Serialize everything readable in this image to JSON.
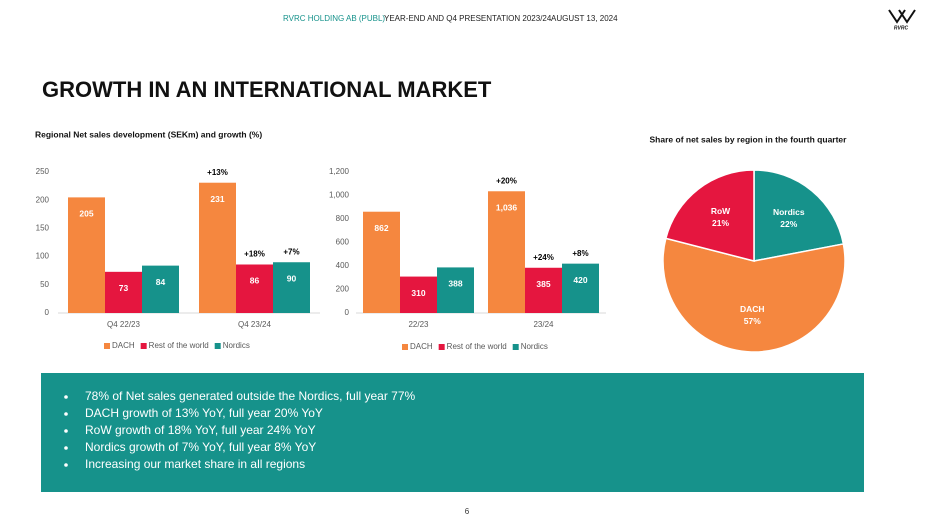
{
  "header": {
    "company": "RVRC HOLDING AB (PUBL)",
    "presentation": "YEAR-END AND Q4 PRESENTATION 2023/24",
    "date": "AUGUST 13, 2024",
    "logo": "RVRC"
  },
  "title": "GROWTH IN AN INTERNATIONAL MARKET",
  "chart_data": [
    {
      "type": "bar",
      "title": "Regional Net sales development (SEKm) and growth (%)",
      "categories": [
        "Q4 22/23",
        "Q4 23/24"
      ],
      "series": [
        {
          "name": "DACH",
          "color": "#f5873f",
          "values": [
            205,
            231
          ],
          "growth": [
            null,
            13
          ],
          "growth_labels": [
            null,
            "+13%"
          ]
        },
        {
          "name": "Rest of the world",
          "color": "#e5163f",
          "values": [
            73,
            86
          ],
          "growth": [
            null,
            18
          ],
          "growth_labels": [
            null,
            "+18%"
          ]
        },
        {
          "name": "Nordics",
          "color": "#16928b",
          "values": [
            84,
            90
          ],
          "growth": [
            null,
            7
          ],
          "growth_labels": [
            null,
            "+7%"
          ]
        }
      ],
      "ylim": [
        0,
        250
      ],
      "yticks": [
        0,
        50,
        100,
        150,
        200,
        250
      ],
      "grid": false,
      "legend": "bottom"
    },
    {
      "type": "bar",
      "categories": [
        "22/23",
        "23/24"
      ],
      "series": [
        {
          "name": "DACH",
          "color": "#f5873f",
          "values": [
            862,
            1036
          ],
          "value_labels": [
            "862",
            "1,036"
          ],
          "growth": [
            null,
            20
          ],
          "growth_labels": [
            null,
            "+20%"
          ]
        },
        {
          "name": "Rest of the world",
          "color": "#e5163f",
          "values": [
            310,
            385
          ],
          "growth": [
            null,
            24
          ],
          "growth_labels": [
            null,
            "+24%"
          ]
        },
        {
          "name": "Nordics",
          "color": "#16928b",
          "values": [
            388,
            420
          ],
          "growth": [
            null,
            8
          ],
          "growth_labels": [
            null,
            "+8%"
          ]
        }
      ],
      "ylim": [
        0,
        1200
      ],
      "yticks": [
        0,
        200,
        400,
        600,
        800,
        {
          "value": 1000,
          "label": "1,000"
        },
        {
          "value": 1200,
          "label": "1,200"
        }
      ],
      "grid": false,
      "legend": "bottom"
    },
    {
      "type": "pie",
      "title": "Share  of net sales by region in the fourth quarter",
      "categories": [
        "Nordics",
        "DACH",
        "RoW"
      ],
      "values": [
        22,
        57,
        21
      ],
      "value_labels": [
        "22%",
        "57%",
        "21%"
      ],
      "colors": [
        "#16928b",
        "#f5873f",
        "#e5163f"
      ]
    }
  ],
  "bullets": [
    "78% of Net sales generated outside the Nordics, full year 77%",
    "DACH growth of 13% YoY, full year 20% YoY",
    "RoW growth of 18% YoY, full year 24% YoY",
    "Nordics growth of 7% YoY, full year 8% YoY",
    "Increasing our market share in all regions"
  ],
  "page_number": "6"
}
